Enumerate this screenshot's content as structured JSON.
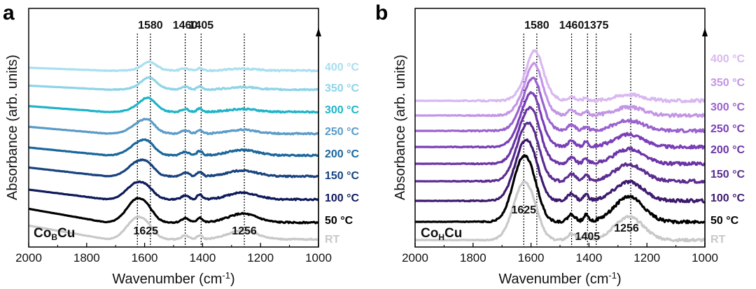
{
  "chart_data": [
    {
      "type": "line",
      "panel": "a",
      "sample_label": {
        "main": "Co",
        "sub": "B",
        "tail": "Cu"
      },
      "xlabel": "Wavenumber (cm",
      "xlabel_sup": "-1",
      "xlabel_close": ")",
      "ylabel": "Absorbance (arb. units)",
      "xlim": [
        2000,
        1000
      ],
      "xticks": [
        "2000",
        "1800",
        "1600",
        "1400",
        "1200",
        "1000"
      ],
      "peaks": [
        {
          "wavenumber": 1625,
          "label": "1625",
          "where": "bottom"
        },
        {
          "wavenumber": 1580,
          "label": "1580",
          "where": "top"
        },
        {
          "wavenumber": 1460,
          "label": "1460",
          "where": "top"
        },
        {
          "wavenumber": 1405,
          "label": "1405",
          "where": "top"
        },
        {
          "wavenumber": 1256,
          "label": "1256",
          "where": "bottom"
        }
      ],
      "series": [
        {
          "name": "RT",
          "color": "#c8c8c8",
          "start": 1.4,
          "main": 2.2,
          "shift": 0,
          "side": 0.4,
          "p1460": 0.4,
          "p1405": 0.4,
          "p1256": 0.9,
          "noise": 0.5
        },
        {
          "name": "50 °C",
          "color": "#000000",
          "start": 1.4,
          "main": 2.4,
          "shift": 0,
          "side": 0.4,
          "p1460": 0.45,
          "p1405": 0.5,
          "p1256": 0.9,
          "noise": 0.6
        },
        {
          "name": "100 °C",
          "color": "#0e1a5a",
          "start": 1.0,
          "main": 1.7,
          "shift": 0,
          "side": 0.4,
          "p1460": 0.4,
          "p1405": 0.5,
          "p1256": 0.7,
          "noise": 0.6
        },
        {
          "name": "150 °C",
          "color": "#17437e",
          "start": 0.9,
          "main": 1.5,
          "shift": 5,
          "side": 0.45,
          "p1460": 0.4,
          "p1405": 0.45,
          "p1256": 0.6,
          "noise": 0.6
        },
        {
          "name": "200 °C",
          "color": "#1a679c",
          "start": 0.8,
          "main": 1.3,
          "shift": 10,
          "side": 0.5,
          "p1460": 0.35,
          "p1405": 0.45,
          "p1256": 0.55,
          "noise": 0.6
        },
        {
          "name": "250 °C",
          "color": "#5a9bc8",
          "start": 0.7,
          "main": 1.1,
          "shift": 15,
          "side": 0.55,
          "p1460": 0.35,
          "p1405": 0.4,
          "p1256": 0.4,
          "noise": 0.6
        },
        {
          "name": "300 °C",
          "color": "#1fb3c8",
          "start": 0.6,
          "main": 0.9,
          "shift": 25,
          "side": 0.6,
          "p1460": 0.3,
          "p1405": 0.35,
          "p1256": 0.3,
          "noise": 0.6
        },
        {
          "name": "350 °C",
          "color": "#8ed4e6",
          "start": 0.4,
          "main": 0.6,
          "shift": 35,
          "side": 0.65,
          "p1460": 0.3,
          "p1405": 0.3,
          "p1256": 0.25,
          "noise": 0.6
        },
        {
          "name": "400 °C",
          "color": "#a9dff0",
          "start": 0.3,
          "main": 0.3,
          "shift": 40,
          "side": 0.6,
          "p1460": 0.25,
          "p1405": 0.25,
          "p1256": 0.2,
          "noise": 0.6
        }
      ]
    },
    {
      "type": "line",
      "panel": "b",
      "sample_label": {
        "main": "Co",
        "sub": "H",
        "tail": "Cu"
      },
      "xlabel": "Wavenumber (cm",
      "xlabel_sup": "-1",
      "xlabel_close": ")",
      "ylabel": "Absorbance (arb. units)",
      "xlim": [
        2000,
        1000
      ],
      "xticks": [
        "2000",
        "1800",
        "1600",
        "1400",
        "1200",
        "1000"
      ],
      "peaks": [
        {
          "wavenumber": 1625,
          "label": "1625",
          "where": "bottom"
        },
        {
          "wavenumber": 1580,
          "label": "1580",
          "where": "top"
        },
        {
          "wavenumber": 1460,
          "label": "1460",
          "where": "top"
        },
        {
          "wavenumber": 1405,
          "label": "1405",
          "where": "bottom"
        },
        {
          "wavenumber": 1375,
          "label": "1375",
          "where": "top"
        },
        {
          "wavenumber": 1256,
          "label": "1256",
          "where": "bottom"
        }
      ],
      "series": [
        {
          "name": "RT",
          "color": "#c8c8c8",
          "start": 0.0,
          "main": 2.7,
          "shift": 0,
          "side": 0.3,
          "p1460": 0.3,
          "p1405": 0.3,
          "p1256": 1.1,
          "noise": 0.5
        },
        {
          "name": "50 °C",
          "color": "#000000",
          "start": 0.0,
          "main": 3.1,
          "shift": 0,
          "side": 0.3,
          "p1460": 0.35,
          "p1405": 0.35,
          "p1256": 1.2,
          "noise": 0.6
        },
        {
          "name": "100 °C",
          "color": "#3e1a6e",
          "start": 0.0,
          "main": 2.8,
          "shift": 5,
          "side": 0.35,
          "p1460": 0.35,
          "p1405": 0.3,
          "p1256": 0.9,
          "noise": 0.6
        },
        {
          "name": "150 °C",
          "color": "#5c2d91",
          "start": 0.0,
          "main": 2.6,
          "shift": 10,
          "side": 0.4,
          "p1460": 0.35,
          "p1405": 0.3,
          "p1256": 0.8,
          "noise": 0.6
        },
        {
          "name": "200 °C",
          "color": "#6b34a6",
          "start": 0.0,
          "main": 2.4,
          "shift": 15,
          "side": 0.45,
          "p1460": 0.3,
          "p1405": 0.25,
          "p1256": 0.7,
          "noise": 0.6
        },
        {
          "name": "250 °C",
          "color": "#7a3fb8",
          "start": 0.0,
          "main": 2.2,
          "shift": 20,
          "side": 0.5,
          "p1460": 0.3,
          "p1405": 0.25,
          "p1256": 0.6,
          "noise": 0.6
        },
        {
          "name": "300 °C",
          "color": "#9a62cf",
          "start": 0.0,
          "main": 2.0,
          "shift": 25,
          "side": 0.6,
          "p1460": 0.3,
          "p1405": 0.2,
          "p1256": 0.5,
          "noise": 0.6
        },
        {
          "name": "350 °C",
          "color": "#c395e6",
          "start": 0.0,
          "main": 1.8,
          "shift": 30,
          "side": 0.7,
          "p1460": 0.25,
          "p1405": 0.2,
          "p1256": 0.4,
          "noise": 0.6
        },
        {
          "name": "400 °C",
          "color": "#d9b8f0",
          "start": 0.0,
          "main": 1.6,
          "shift": 35,
          "side": 0.8,
          "p1460": 0.2,
          "p1405": 0.15,
          "p1256": 0.3,
          "noise": 0.6
        }
      ]
    }
  ]
}
